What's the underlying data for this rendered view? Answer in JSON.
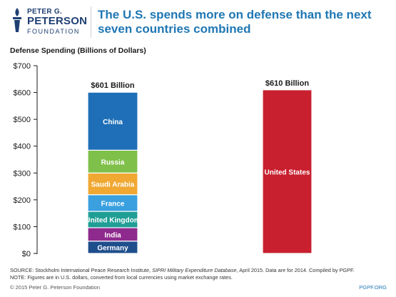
{
  "logo": {
    "line1": "PETER G.",
    "line2": "PETERSON",
    "line3": "FOUNDATION",
    "color": "#1f3f73"
  },
  "title": "The U.S. spends more on defense than the next seven countries combined",
  "source": {
    "prefix": "SOURCE: Stockholm International Peace Research Institute, ",
    "italic": "SIPRI Military Expenditure Database",
    "suffix": ", April 2015. Data are for 2014. Compiled by PGPF.",
    "note": "NOTE: Figures are in U.S. dollars, converted from local currencies using market exchange rates."
  },
  "footer": {
    "copyright": "© 2015 Peter G. Peterson Foundation",
    "site": "PGPF.ORG"
  },
  "chart_data": {
    "type": "bar",
    "stacked": true,
    "ylabel": "Defense Spending (Billions of Dollars)",
    "ylim": [
      0,
      700
    ],
    "yticks": [
      0,
      100,
      200,
      300,
      400,
      500,
      600,
      700
    ],
    "ytick_labels": [
      "$0",
      "$100",
      "$200",
      "$300",
      "$400",
      "$500",
      "$600",
      "$700"
    ],
    "grid": false,
    "bars": [
      {
        "total_label": "$601 Billion",
        "total": 601,
        "segments": [
          {
            "name": "Germany",
            "value": 46,
            "color": "#1f4e8c"
          },
          {
            "name": "India",
            "value": 50,
            "color": "#8e2a8e"
          },
          {
            "name": "United Kingdom",
            "value": 61,
            "color": "#1f9e95"
          },
          {
            "name": "France",
            "value": 62,
            "color": "#3aa0e0"
          },
          {
            "name": "Saudi Arabia",
            "value": 81,
            "color": "#f0a832"
          },
          {
            "name": "Russia",
            "value": 85,
            "color": "#7fc04a"
          },
          {
            "name": "China",
            "value": 216,
            "color": "#1f6fb8"
          }
        ]
      },
      {
        "total_label": "$610 Billion",
        "total": 610,
        "segments": [
          {
            "name": "United States",
            "value": 610,
            "color": "#c8202f"
          }
        ]
      }
    ]
  }
}
